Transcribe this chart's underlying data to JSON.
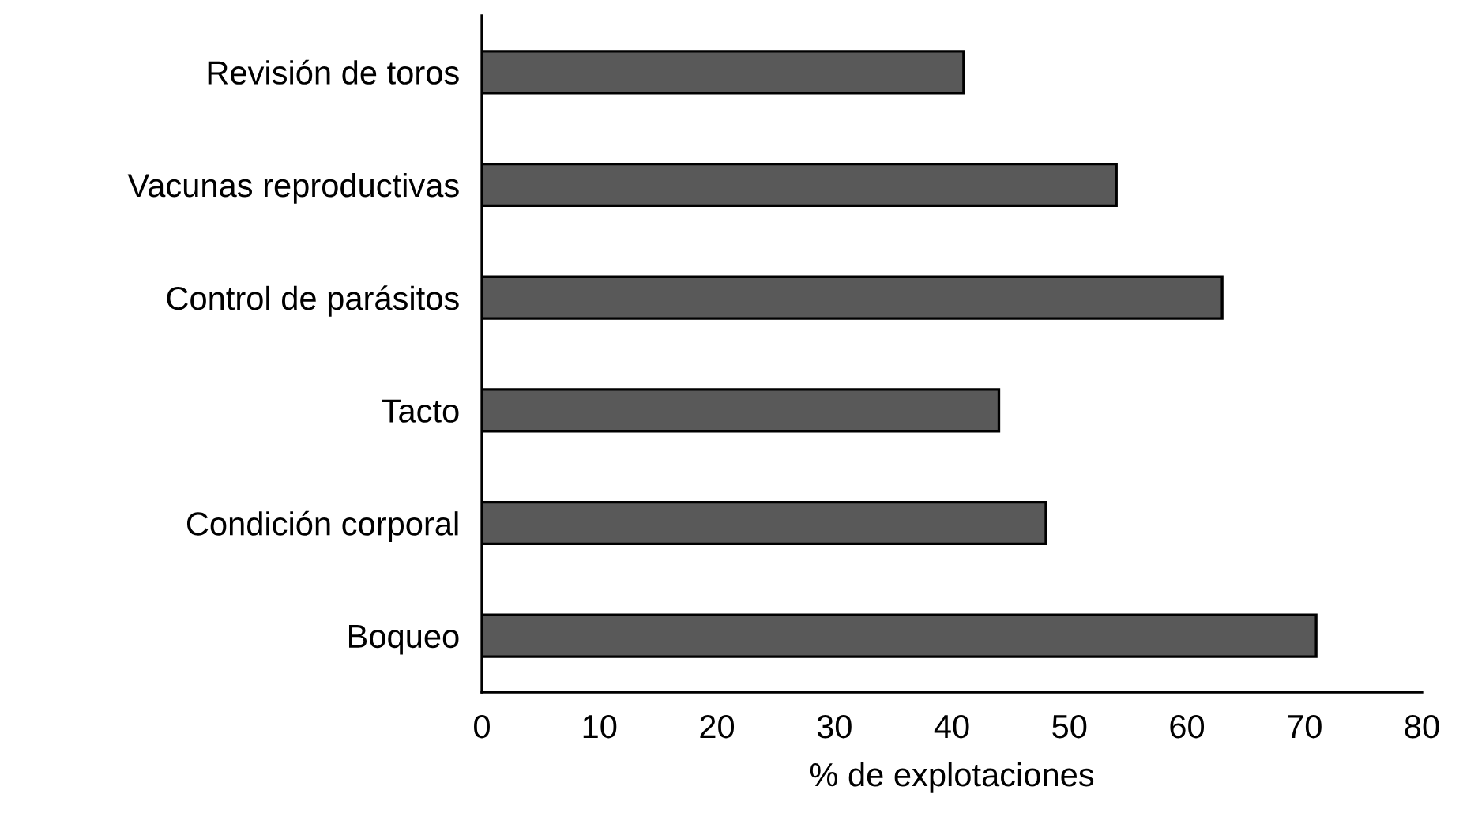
{
  "chart_data": {
    "type": "bar",
    "orientation": "horizontal",
    "xlabel": "% de explotaciones",
    "categories": [
      "Revisión de toros",
      "Vacunas reproductivas",
      "Control de parásitos",
      "Tacto",
      "Condición corporal",
      "Boqueo"
    ],
    "values": [
      41,
      54,
      63,
      44,
      48,
      71
    ],
    "color": "#595959",
    "xlim": [
      0,
      80
    ],
    "xticks": [
      0,
      10,
      20,
      30,
      40,
      50,
      60,
      70,
      80
    ],
    "grid": false,
    "legend": false
  }
}
